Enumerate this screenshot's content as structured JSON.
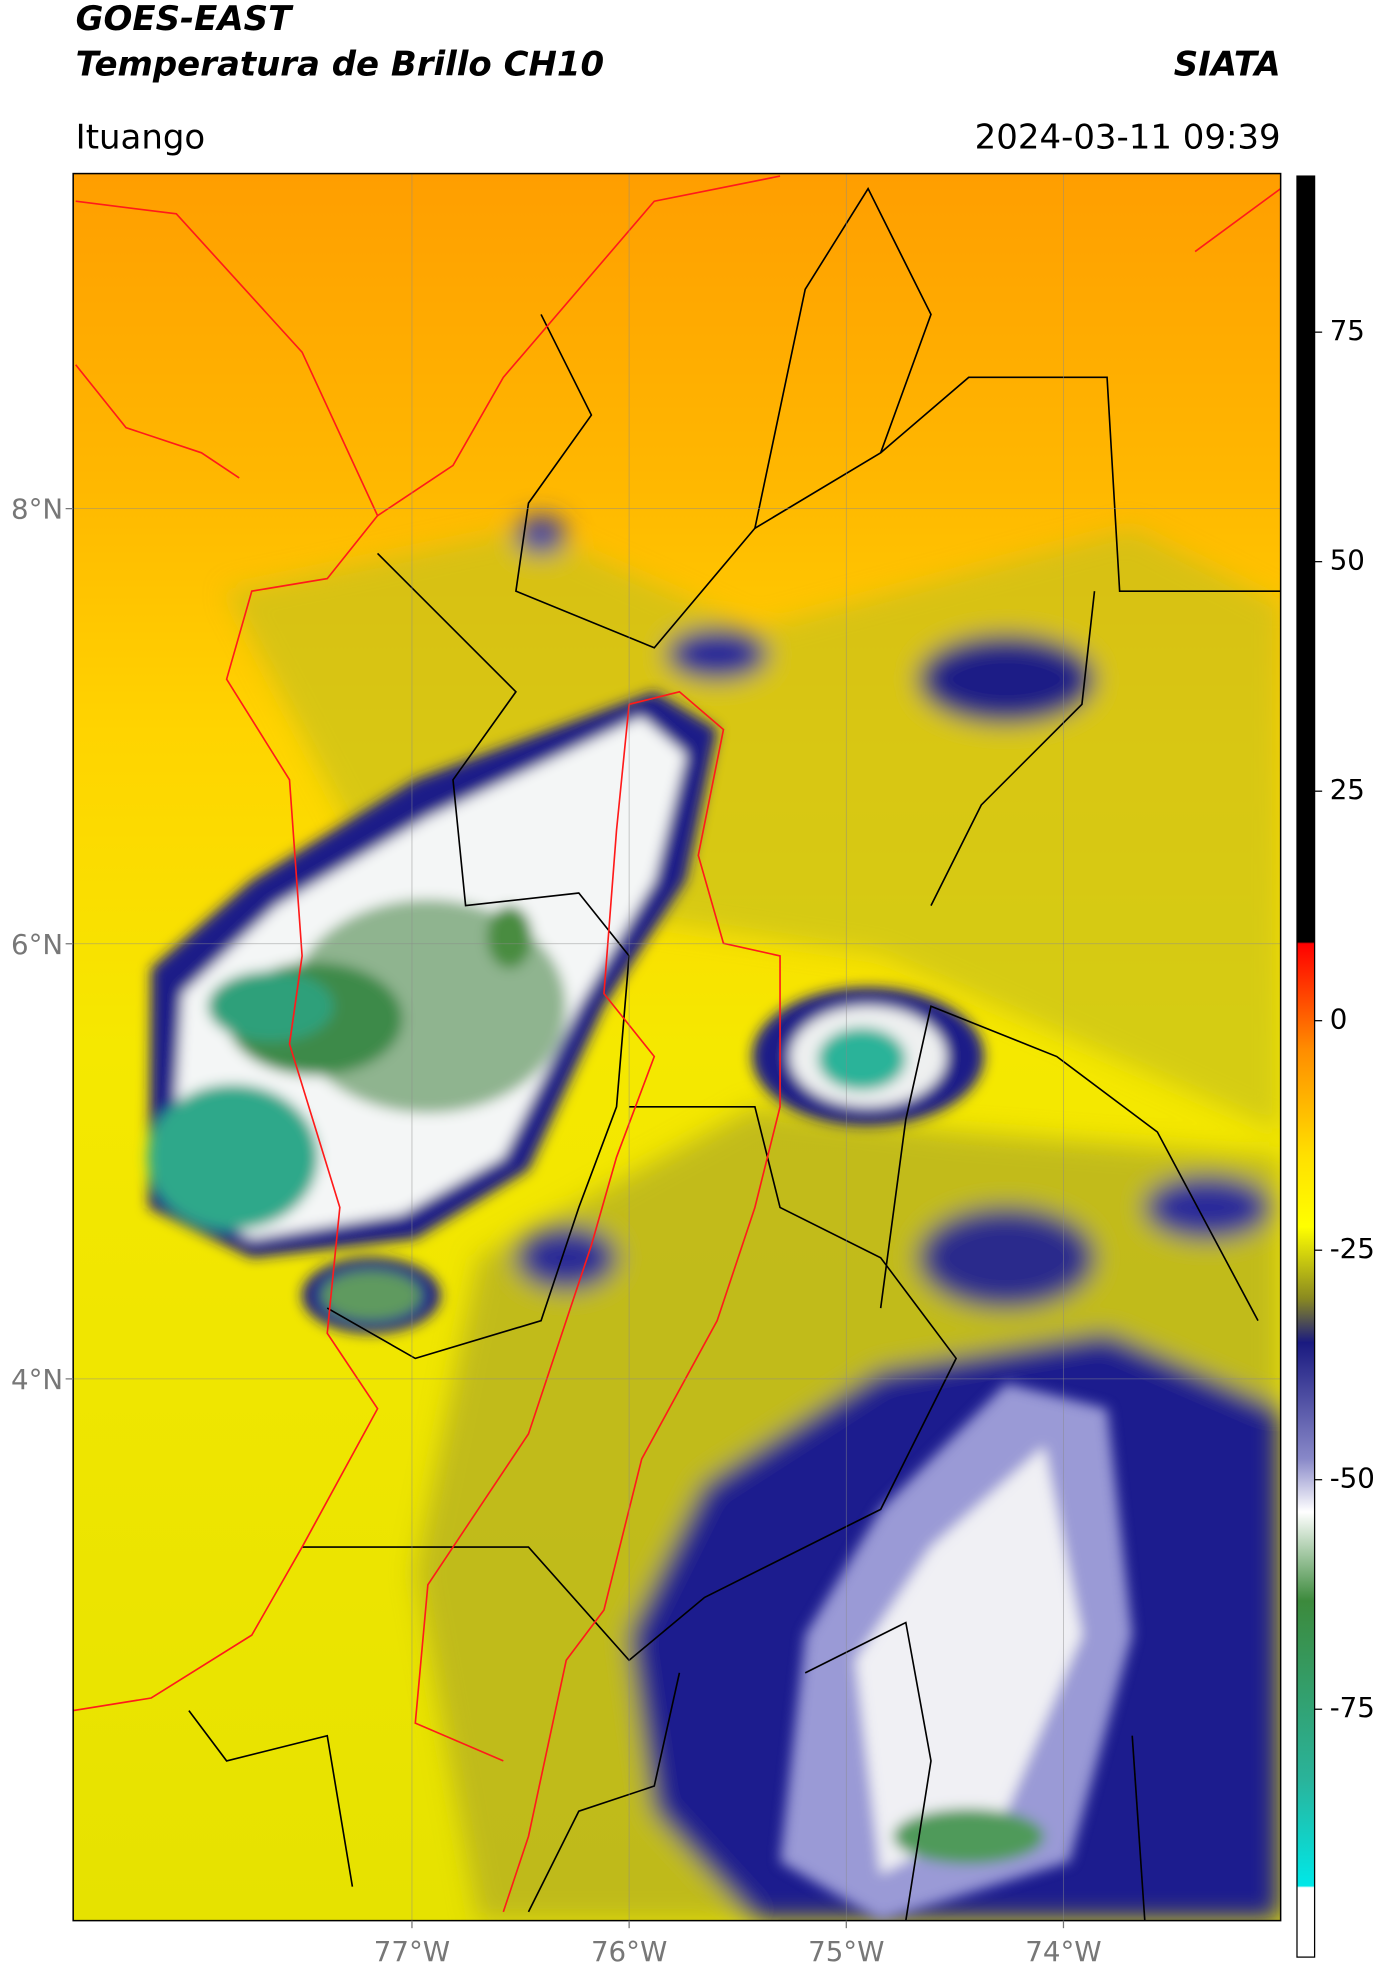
{
  "header": {
    "title_lines": [
      "GOES-EAST",
      "Temperatura de Brillo CH10"
    ],
    "source": "SIATA",
    "location": "Ituango",
    "timestamp": "2024-03-11 09:39"
  },
  "map": {
    "lonlim": [
      -78.56,
      -73.0
    ],
    "latlim": [
      1.51,
      9.54
    ],
    "lat_ticks": [
      {
        "value": 8,
        "label": "8°N"
      },
      {
        "value": 6,
        "label": "6°N"
      },
      {
        "value": 4,
        "label": "4°N"
      }
    ],
    "lon_ticks": [
      {
        "value": -77,
        "label": "77°W"
      },
      {
        "value": -76,
        "label": "76°W"
      },
      {
        "value": -75,
        "label": "75°W"
      },
      {
        "value": -74,
        "label": "74°W"
      }
    ]
  },
  "colorbar": {
    "lim": [
      -102,
      92
    ],
    "ticks": [
      75,
      50,
      25,
      0,
      -25,
      -50,
      -75
    ]
  }
}
